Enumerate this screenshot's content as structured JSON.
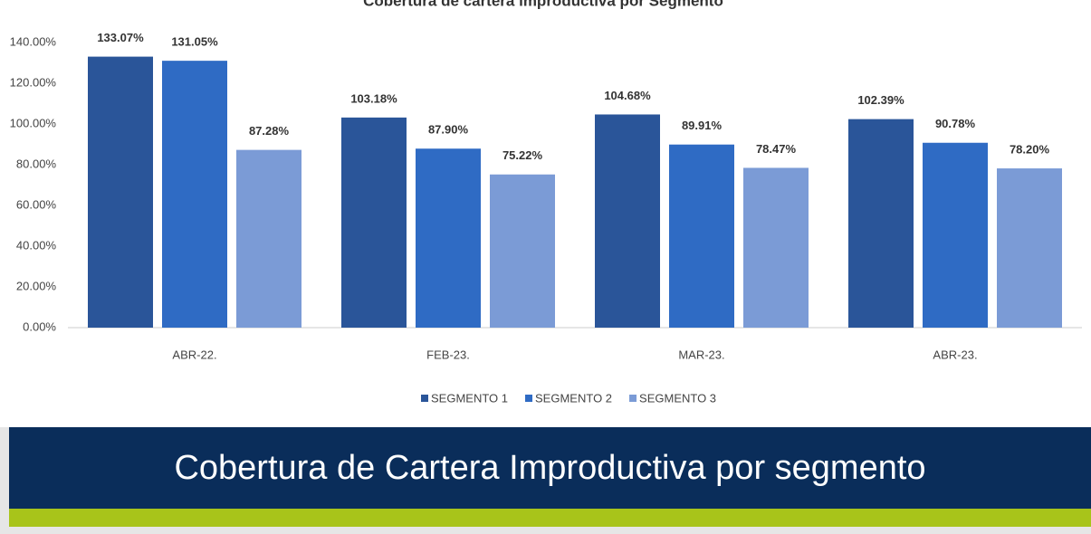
{
  "chart_data": {
    "type": "bar",
    "title": "Cobertura de cartera improductiva por Segmento",
    "categories": [
      "ABR-22.",
      "FEB-23.",
      "MAR-23.",
      "ABR-23."
    ],
    "series": [
      {
        "name": "SEGMENTO 1",
        "color": "#2a5599",
        "values": [
          133.07,
          103.18,
          104.68,
          102.39
        ],
        "value_labels": [
          "133.07%",
          "103.18%",
          "104.68%",
          "102.39%"
        ]
      },
      {
        "name": "SEGMENTO 2",
        "color": "#2f6bc4",
        "values": [
          131.05,
          87.9,
          89.91,
          90.78
        ],
        "value_labels": [
          "131.05%",
          "87.90%",
          "89.91%",
          "90.78%"
        ]
      },
      {
        "name": "SEGMENTO 3",
        "color": "#7b9bd6",
        "values": [
          87.28,
          75.22,
          78.47,
          78.2
        ],
        "value_labels": [
          "87.28%",
          "75.22%",
          "78.47%",
          "78.20%"
        ]
      }
    ],
    "ylim": [
      0,
      140
    ],
    "yticks": [
      {
        "value": 0,
        "label": "0.00%"
      },
      {
        "value": 20,
        "label": "20.00%"
      },
      {
        "value": 40,
        "label": "40.00%"
      },
      {
        "value": 60,
        "label": "60.00%"
      },
      {
        "value": 80,
        "label": "80.00%"
      },
      {
        "value": 100,
        "label": "100.00%"
      },
      {
        "value": 120,
        "label": "120.00%"
      },
      {
        "value": 140,
        "label": "140.00%"
      }
    ],
    "grid": false,
    "legend": "bottom"
  },
  "banner": {
    "text": "Cobertura de Cartera Improductiva por segmento"
  }
}
